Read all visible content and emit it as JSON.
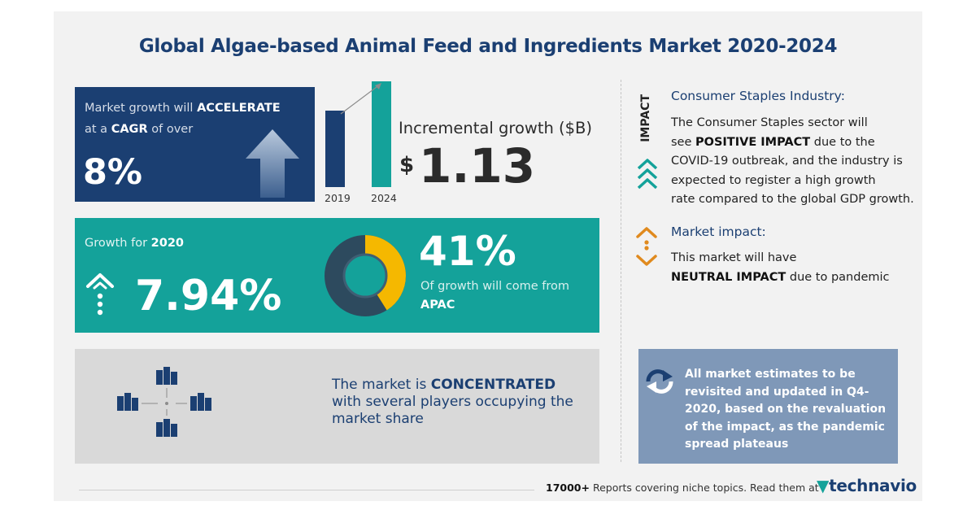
{
  "title": "Global Algae-based Animal Feed and Ingredients Market 2020-2024",
  "cagr_box": {
    "line1_pre": "Market growth will ",
    "line1_bold": "ACCELERATE",
    "line2_pre": "at a ",
    "line2_bold": "CAGR",
    "line2_post": " of over",
    "value": "8%"
  },
  "incremental": {
    "label": "Incremental growth ($B)",
    "currency": "$",
    "value": "1.13",
    "bars": [
      {
        "year": "2019",
        "level": 0.72
      },
      {
        "year": "2024",
        "level": 1.0
      }
    ],
    "colors": {
      "bar2019": "#1b3f72",
      "bar2024": "#14a29a"
    }
  },
  "growth_box": {
    "label_pre": "Growth for ",
    "label_bold": "2020",
    "value": "7.94%",
    "share_value": "41%",
    "share_text": "Of growth will come from",
    "share_region": "APAC",
    "share_fraction": 0.41,
    "colors": {
      "share": "#f5b800",
      "ring": "#2d4a5e",
      "inner": "#14a29a"
    }
  },
  "impact": {
    "vertical_label": "IMPACT",
    "industry_heading": "Consumer Staples Industry:",
    "industry_line1": "The Consumer Staples sector will",
    "industry_line2_pre": "see ",
    "industry_line2_bold": "POSITIVE IMPACT",
    "industry_line2_post": " due to the",
    "industry_line3": "COVID-19 outbreak, and the industry is",
    "industry_line4": "expected to register a high growth",
    "industry_line5": "rate compared to the global GDP growth.",
    "market_heading": "Market impact:",
    "market_line1": "This market will have",
    "market_line2_bold": "NEUTRAL IMPACT",
    "market_line2_post": " due to pandemic"
  },
  "concentration": {
    "text_pre": "The market is ",
    "text_bold": "CONCENTRATED",
    "line2": "with several players occupying the",
    "line3": "market share"
  },
  "notice": {
    "text": "All market estimates to be revisited and updated in Q4-2020, based on the revaluation of the impact, as the pandemic spread plateaus"
  },
  "footer": {
    "count_bold": "17000+",
    "text": " Reports covering niche topics. Read them at",
    "brand": "technavio"
  },
  "icons": {
    "up_arrow": "up-arrow-icon",
    "growth": "growth-signal-icon",
    "donut": "donut-chart-icon",
    "positive": "chevrons-up-icon",
    "neutral": "neutral-arrows-icon",
    "buildings": "buildings-concentration-icon",
    "refresh": "refresh-icon",
    "brand": "technavio-logo-icon"
  }
}
